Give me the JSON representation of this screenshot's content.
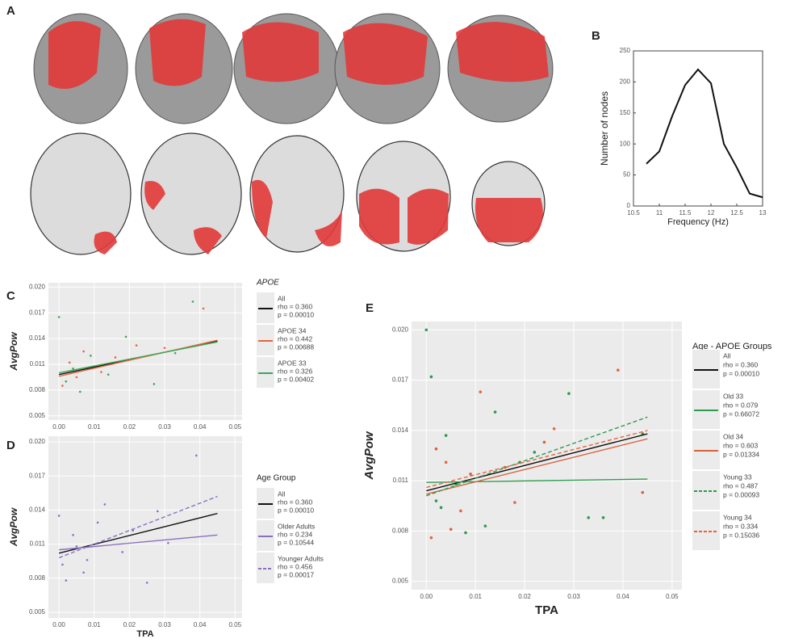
{
  "panel_a": {
    "label": "A"
  },
  "chart_data": [
    {
      "type": "line",
      "panel": "B",
      "xlabel": "Frequency (Hz)",
      "ylabel": "Number of nodes",
      "x": [
        10.75,
        11,
        11.25,
        11.5,
        11.75,
        12,
        12.25,
        12.5,
        12.75,
        13
      ],
      "values": [
        68,
        88,
        145,
        195,
        220,
        198,
        100,
        62,
        20,
        14
      ],
      "color": "#111111",
      "xlim": [
        10.5,
        13
      ],
      "xticks": [
        10.5,
        11,
        11.5,
        12,
        12.5,
        13
      ],
      "ylim": [
        0,
        250
      ],
      "yticks": [
        0,
        50,
        100,
        150,
        200,
        250
      ]
    },
    {
      "type": "scatter",
      "panel": "C",
      "ylabel": "AvgPow",
      "legend_title": "APOE",
      "xlim": [
        -0.003,
        0.052
      ],
      "ylim": [
        0.0045,
        0.0205
      ],
      "xticks": [
        {
          "value": 0,
          "label": "0.00"
        },
        0.01,
        0.02,
        0.03,
        0.04,
        0.05
      ],
      "yticks": [
        0.005,
        0.008,
        0.011,
        0.014,
        0.017,
        {
          "value": 0.02,
          "label": "0.020"
        }
      ],
      "series": [
        {
          "name": "All",
          "rho": "rho = 0.360",
          "p": "p = 0.00010",
          "color": "#111111",
          "dash": false,
          "x": [
            0,
            0.045
          ],
          "values": [
            0.0098,
            0.0137
          ],
          "points": {
            "x": [],
            "y": []
          }
        },
        {
          "name": "APOE 34",
          "rho": "rho = 0.442",
          "p": "p = 0.00688",
          "color": "#e8643c",
          "dash": false,
          "x": [
            0,
            0.045
          ],
          "values": [
            0.0096,
            0.0138
          ],
          "points": {
            "x": [
              0.001,
              0.003,
              0.005,
              0.007,
              0.012,
              0.016,
              0.022,
              0.03,
              0.041
            ],
            "y": [
              0.0085,
              0.0112,
              0.0095,
              0.0125,
              0.0101,
              0.0118,
              0.0132,
              0.0129,
              0.0175
            ]
          }
        },
        {
          "name": "APOE 33",
          "rho": "rho = 0.326",
          "p": "p = 0.00402",
          "color": "#3aa85a",
          "dash": false,
          "x": [
            0,
            0.045
          ],
          "values": [
            0.01,
            0.0136
          ],
          "points": {
            "x": [
              0,
              0.002,
              0.004,
              0.006,
              0.009,
              0.014,
              0.019,
              0.027,
              0.033,
              0.038
            ],
            "y": [
              0.0165,
              0.009,
              0.0105,
              0.0078,
              0.012,
              0.0098,
              0.0142,
              0.0087,
              0.0123,
              0.0183
            ]
          }
        }
      ]
    },
    {
      "type": "scatter",
      "panel": "D",
      "xlabel": "TPA",
      "ylabel": "AvgPow",
      "legend_title": "Age Group",
      "xlim": [
        -0.003,
        0.052
      ],
      "ylim": [
        0.0045,
        0.0205
      ],
      "xticks": [
        {
          "value": 0,
          "label": "0.00"
        },
        0.01,
        0.02,
        0.03,
        0.04,
        0.05
      ],
      "yticks": [
        0.005,
        0.008,
        0.011,
        0.014,
        0.017,
        {
          "value": 0.02,
          "label": "0.020"
        }
      ],
      "series": [
        {
          "name": "All",
          "rho": "rho = 0.360",
          "p": "p = 0.00010",
          "color": "#111111",
          "dash": false,
          "x": [
            0,
            0.045
          ],
          "values": [
            0.0102,
            0.0137
          ],
          "points": {
            "x": [],
            "y": []
          }
        },
        {
          "name": "Older Adults",
          "rho": "rho = 0.234",
          "p": "p = 0.10544",
          "color": "#8a70c0",
          "dash": false,
          "x": [
            0,
            0.045
          ],
          "values": [
            0.0105,
            0.0118
          ],
          "points": {
            "x": [
              0.001,
              0.004,
              0.007,
              0.011,
              0.018,
              0.025,
              0.031
            ],
            "y": [
              0.0092,
              0.0118,
              0.0085,
              0.0129,
              0.0103,
              0.0076,
              0.0111
            ]
          }
        },
        {
          "name": "Younger Adults",
          "rho": "rho = 0.456",
          "p": "p = 0.00017",
          "color": "#8a70c0",
          "dash": true,
          "x": [
            0,
            0.045
          ],
          "values": [
            0.0098,
            0.0152
          ],
          "points": {
            "x": [
              0,
              0.002,
              0.005,
              0.008,
              0.013,
              0.021,
              0.028,
              0.039
            ],
            "y": [
              0.0135,
              0.0078,
              0.0108,
              0.0096,
              0.0145,
              0.0122,
              0.0139,
              0.0188
            ]
          }
        }
      ]
    },
    {
      "type": "scatter",
      "panel": "E",
      "xlabel": "TPA",
      "ylabel": "AvgPow",
      "legend_title": "Age - APOE Groups",
      "xlim": [
        -0.003,
        0.052
      ],
      "ylim": [
        0.0045,
        0.0205
      ],
      "xticks": [
        {
          "value": 0,
          "label": "0.00"
        },
        0.01,
        0.02,
        0.03,
        0.04,
        0.05
      ],
      "yticks": [
        0.005,
        0.008,
        0.011,
        0.014,
        0.017,
        {
          "value": 0.02,
          "label": "0.020"
        }
      ],
      "series": [
        {
          "name": "All",
          "rho": "rho = 0.360",
          "p": "p = 0.00010",
          "color": "#111111",
          "dash": false,
          "x": [
            0,
            0.045
          ],
          "values": [
            0.0104,
            0.0138
          ],
          "points": {
            "x": [],
            "y": []
          }
        },
        {
          "name": "Old 33",
          "rho": "rho = 0.079",
          "p": "p = 0.66072",
          "color": "#2e9a4e",
          "dash": false,
          "x": [
            0,
            0.045
          ],
          "values": [
            0.0109,
            0.0111
          ],
          "points": {
            "x": [
              0.001,
              0.003,
              0.006,
              0.012,
              0.019,
              0.033,
              0.036
            ],
            "y": [
              0.0172,
              0.0094,
              0.0108,
              0.0083,
              0.0121,
              0.0088,
              0.0088
            ]
          }
        },
        {
          "name": "Old 34",
          "rho": "rho = 0.603",
          "p": "p = 0.01334",
          "color": "#d9603a",
          "dash": false,
          "x": [
            0,
            0.045
          ],
          "values": [
            0.0102,
            0.0135
          ],
          "points": {
            "x": [
              0.002,
              0.005,
              0.009,
              0.016,
              0.024,
              0.044
            ],
            "y": [
              0.0129,
              0.0081,
              0.0114,
              0.0118,
              0.0133,
              0.0103
            ]
          }
        },
        {
          "name": "Young 33",
          "rho": "rho = 0.487",
          "p": "p = 0.00093",
          "color": "#2e9a4e",
          "dash": true,
          "x": [
            0,
            0.045
          ],
          "values": [
            0.0101,
            0.0148
          ],
          "points": {
            "x": [
              0,
              0.002,
              0.004,
              0.008,
              0.014,
              0.022,
              0.029,
              0.044
            ],
            "y": [
              0.02,
              0.0098,
              0.0137,
              0.0079,
              0.0151,
              0.0127,
              0.0162,
              0.0138
            ]
          }
        },
        {
          "name": "Young 34",
          "rho": "rho = 0.334",
          "p": "p = 0.15036",
          "color": "#e8643c",
          "dash": true,
          "x": [
            0,
            0.045
          ],
          "values": [
            0.0106,
            0.014
          ],
          "points": {
            "x": [
              0.001,
              0.004,
              0.007,
              0.011,
              0.018,
              0.026,
              0.039
            ],
            "y": [
              0.0076,
              0.0121,
              0.0092,
              0.0163,
              0.0097,
              0.0141,
              0.0176
            ]
          }
        }
      ]
    }
  ]
}
